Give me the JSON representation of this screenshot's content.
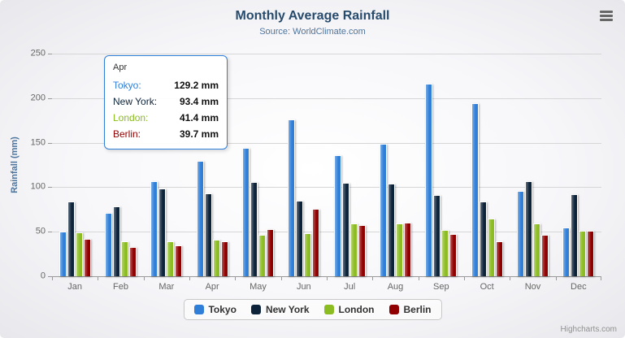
{
  "title": "Monthly Average Rainfall",
  "subtitle": "Source: WorldClimate.com",
  "credits": "Highcharts.com",
  "chart_data": {
    "type": "bar",
    "title": "Monthly Average Rainfall",
    "subtitle": "Source: WorldClimate.com",
    "xlabel": "",
    "ylabel": "Rainfall (mm)",
    "ylim": [
      0,
      250
    ],
    "yticks": [
      0,
      50,
      100,
      150,
      200,
      250
    ],
    "grid": true,
    "legend_position": "bottom",
    "categories": [
      "Jan",
      "Feb",
      "Mar",
      "Apr",
      "May",
      "Jun",
      "Jul",
      "Aug",
      "Sep",
      "Oct",
      "Nov",
      "Dec"
    ],
    "series": [
      {
        "name": "Tokyo",
        "color": "#2f7ed8",
        "values": [
          49.9,
          71.5,
          106.4,
          129.2,
          144.0,
          176.0,
          135.6,
          148.5,
          216.4,
          194.1,
          95.6,
          54.4
        ]
      },
      {
        "name": "New York",
        "color": "#0d233a",
        "values": [
          83.6,
          78.8,
          98.5,
          93.4,
          106.0,
          84.5,
          105.0,
          104.3,
          91.2,
          83.5,
          106.6,
          92.3
        ]
      },
      {
        "name": "London",
        "color": "#8bbc21",
        "values": [
          48.9,
          38.8,
          39.3,
          41.4,
          47.0,
          48.3,
          59.0,
          59.6,
          52.4,
          65.2,
          59.3,
          51.2
        ]
      },
      {
        "name": "Berlin",
        "color": "#910000",
        "values": [
          42.4,
          33.2,
          34.5,
          39.7,
          52.6,
          75.5,
          57.4,
          60.4,
          47.6,
          39.1,
          46.8,
          51.1
        ]
      }
    ]
  },
  "tooltip": {
    "category": "Apr",
    "border_color": "#2f7ed8",
    "rows": [
      {
        "label": "Tokyo:",
        "value": "129.2 mm",
        "color": "#2f7ed8"
      },
      {
        "label": "New York:",
        "value": "93.4 mm",
        "color": "#0d233a"
      },
      {
        "label": "London:",
        "value": "41.4 mm",
        "color": "#8bbc21"
      },
      {
        "label": "Berlin:",
        "value": "39.7 mm",
        "color": "#910000"
      }
    ]
  }
}
